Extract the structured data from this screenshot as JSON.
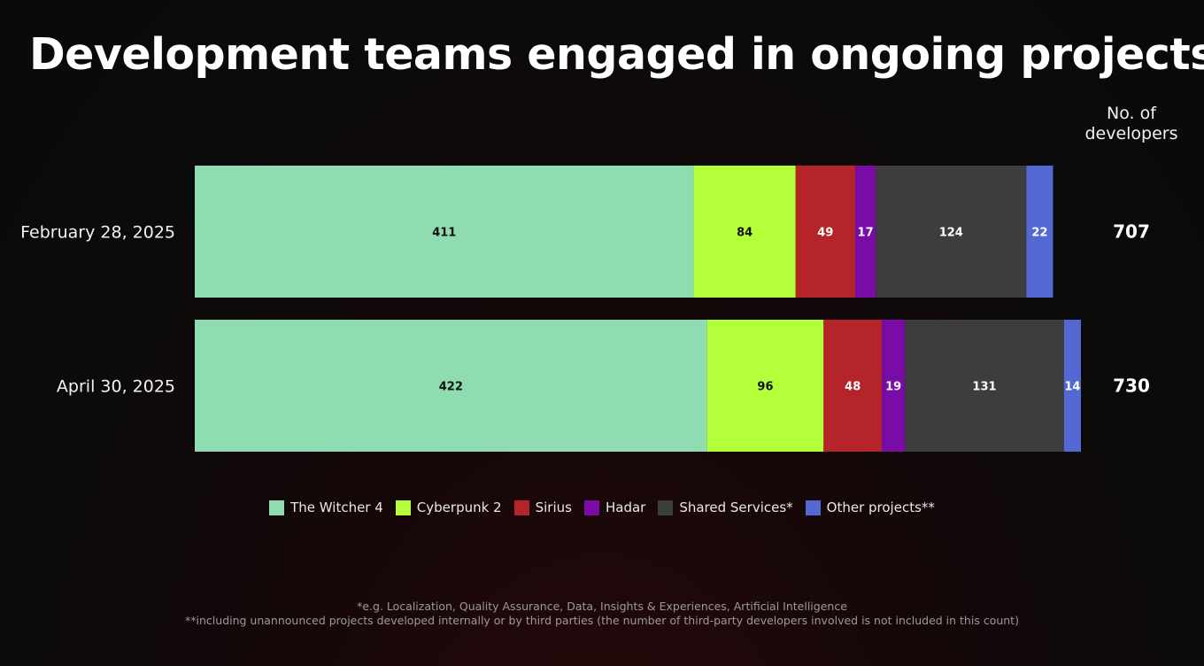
{
  "chart_data": {
    "type": "bar",
    "orientation": "horizontal",
    "stacked": true,
    "title": "Development teams engaged in ongoing projects",
    "total_label": "No. of developers",
    "categories": [
      "February 28, 2025",
      "April 30, 2025"
    ],
    "series": [
      {
        "name": "The Witcher 4",
        "color": "#8fdcb0",
        "label_color": "#111111",
        "values": [
          411,
          422
        ]
      },
      {
        "name": "Cyberpunk 2",
        "color": "#b3ff3a",
        "label_color": "#111111",
        "values": [
          84,
          96
        ]
      },
      {
        "name": "Sirius",
        "color": "#b52428",
        "label_color": "#ffffff",
        "values": [
          49,
          48
        ]
      },
      {
        "name": "Hadar",
        "color": "#7a0ca6",
        "label_color": "#ffffff",
        "values": [
          17,
          19
        ]
      },
      {
        "name": "Shared Services*",
        "color": "#3d3d3d",
        "label_color": "#ffffff",
        "values": [
          124,
          131
        ]
      },
      {
        "name": "Other projects**",
        "color": "#5468d4",
        "label_color": "#ffffff",
        "values": [
          22,
          14
        ]
      }
    ],
    "totals": [
      707,
      730
    ],
    "xlim": [
      0,
      730
    ],
    "grid": false,
    "legend_position": "bottom-center"
  },
  "footnotes": [
    "*e.g. Localization, Quality Assurance, Data, Insights & Experiences, Artificial Intelligence",
    "**including unannounced projects developed internally or by third parties (the number of third-party developers involved is not included in this count)"
  ]
}
